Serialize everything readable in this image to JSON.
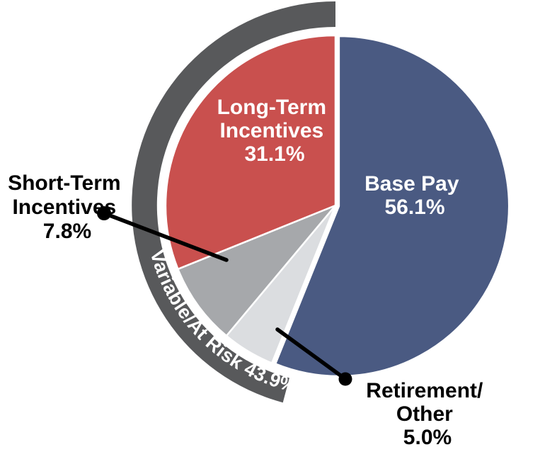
{
  "chart_data": {
    "type": "pie",
    "title": "",
    "units": "%",
    "direction": "clockwise",
    "start_angle_deg": 0,
    "legend": "none",
    "labels_style": "large slices labeled inside; small slices labeled outside with black leader lines and dots",
    "slices": [
      {
        "label": "Base Pay",
        "value": 56.1,
        "display": "56.1%",
        "color": "#4A5A82",
        "label_color": "#FFFFFF",
        "exploded": true
      },
      {
        "label": "Retirement/Other",
        "value": 5.0,
        "display": "5.0%",
        "color": "#DBDDE0",
        "label_color": "#000000",
        "exploded": false
      },
      {
        "label": "Short-Term Incentives",
        "value": 7.8,
        "display": "7.8%",
        "color": "#A6A8AB",
        "label_color": "#000000",
        "exploded": false
      },
      {
        "label": "Long-Term Incentives",
        "value": 31.1,
        "display": "31.1%",
        "color": "#C9504E",
        "label_color": "#FFFFFF",
        "exploded": false
      }
    ],
    "outer_ring": {
      "label": "Variable/At Risk",
      "value": 43.9,
      "display": "Variable/At Risk 43.9%",
      "color": "#58595B",
      "label_color": "#FFFFFF",
      "covers": [
        "Retirement/Other",
        "Short-Term Incentives",
        "Long-Term Incentives"
      ]
    }
  },
  "labels": {
    "long_term": {
      "line1": "Long-Term",
      "line2": "Incentives",
      "line3": "31.1%"
    },
    "base_pay": {
      "line1": "Base Pay",
      "line2": "56.1%"
    },
    "short_term": {
      "line1": "Short-Term",
      "line2": "Incentives",
      "line3": "7.8%"
    },
    "retirement": {
      "line1": "Retirement/",
      "line2": "Other",
      "line3": "5.0%"
    },
    "ring": "Variable/At Risk 43.9%"
  }
}
